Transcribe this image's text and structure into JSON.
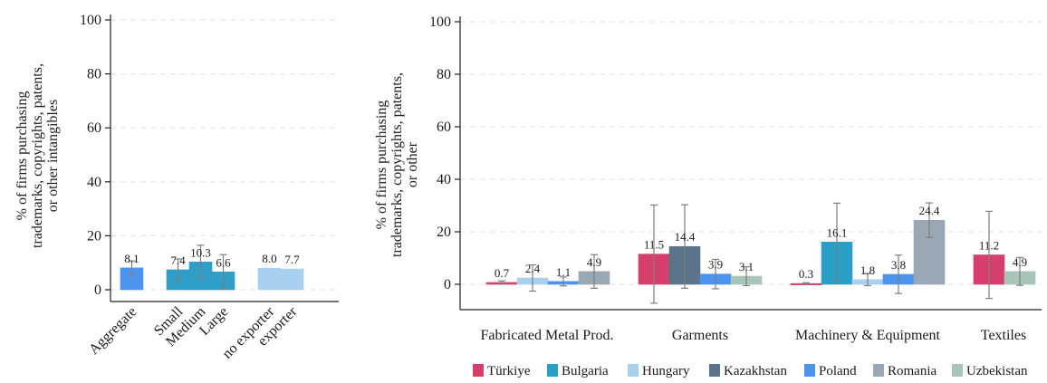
{
  "colors": {
    "grid": "#e6e6e6",
    "axis": "#222222",
    "errorbar": "#7f7f7f",
    "text": "#1a1a1a"
  },
  "chart_data": [
    {
      "type": "bar",
      "ylabel": "% of firms purchasing trademarks, copyrights, patents, or other intangibles",
      "ylim": [
        0,
        100
      ],
      "yticks": [
        0,
        20,
        40,
        60,
        80,
        100
      ],
      "grid": true,
      "groups": [
        {
          "bars": [
            {
              "category": "Aggregate",
              "value": 8.1,
              "label": "8.1",
              "ci": [
                5.5,
                10.7
              ],
              "color": "#4d94ef"
            }
          ]
        },
        {
          "bars": [
            {
              "category": "Small",
              "value": 7.4,
              "label": "7.4",
              "ci": [
                3.4,
                11.4
              ],
              "color": "#2f9ec8"
            },
            {
              "category": "Medium",
              "value": 10.3,
              "label": "10.3",
              "ci": [
                4.1,
                16.5
              ],
              "color": "#2f9ec8"
            },
            {
              "category": "Large",
              "value": 6.6,
              "label": "6.6",
              "ci": [
                0.2,
                13.0
              ],
              "color": "#2f9ec8"
            }
          ]
        },
        {
          "bars": [
            {
              "category": "no exporter",
              "value": 8.0,
              "label": "8.0",
              "ci": null,
              "color": "#a9d0ee"
            },
            {
              "category": "exporter",
              "value": 7.7,
              "label": "7.7",
              "ci": null,
              "color": "#a9d0ee"
            }
          ]
        }
      ]
    },
    {
      "type": "bar",
      "ylabel": "% of firms purchasing trademarks, copyrights, patents, or other",
      "ylim": [
        0,
        100
      ],
      "yticks": [
        0,
        20,
        40,
        60,
        80,
        100
      ],
      "grid": true,
      "legend_position": "bottom",
      "series": [
        {
          "name": "Türkiye",
          "color": "#d63e6c"
        },
        {
          "name": "Bulgaria",
          "color": "#2a9fc6"
        },
        {
          "name": "Hungary",
          "color": "#a9d0ee"
        },
        {
          "name": "Kazakhstan",
          "color": "#5b7489"
        },
        {
          "name": "Poland",
          "color": "#4d94ef"
        },
        {
          "name": "Romania",
          "color": "#9aa7b5"
        },
        {
          "name": "Uzbekistan",
          "color": "#a9c4b8"
        }
      ],
      "groups": [
        {
          "category": "Fabricated Metal Prod.",
          "bars": [
            {
              "series": "Türkiye",
              "value": 0.7,
              "label": "0.7",
              "ci": [
                0.1,
                1.3
              ]
            },
            {
              "series": "Hungary",
              "value": 2.4,
              "label": "2.4",
              "ci": [
                -2.6,
                7.4
              ]
            },
            {
              "series": "Poland",
              "value": 1.1,
              "label": "1.1",
              "ci": [
                -0.6,
                2.8
              ]
            },
            {
              "series": "Romania",
              "value": 4.9,
              "label": "4.9",
              "ci": [
                -1.5,
                11.3
              ]
            }
          ]
        },
        {
          "category": "Garments",
          "bars": [
            {
              "series": "Türkiye",
              "value": 11.5,
              "label": "11.5",
              "ci": [
                -7.2,
                30.2
              ]
            },
            {
              "series": "Kazakhstan",
              "value": 14.4,
              "label": "14.4",
              "ci": [
                -1.5,
                30.3
              ]
            },
            {
              "series": "Poland",
              "value": 3.9,
              "label": "3.9",
              "ci": [
                -1.7,
                9.5
              ]
            },
            {
              "series": "Uzbekistan",
              "value": 3.1,
              "label": "3.1",
              "ci": [
                -0.5,
                6.7
              ]
            }
          ]
        },
        {
          "category": "Machinery & Equipment",
          "bars": [
            {
              "series": "Türkiye",
              "value": 0.3,
              "label": "0.3",
              "ci": [
                0.0,
                0.6
              ]
            },
            {
              "series": "Bulgaria",
              "value": 16.1,
              "label": "16.1",
              "ci": [
                1.3,
                30.9
              ]
            },
            {
              "series": "Hungary",
              "value": 1.8,
              "label": "1.8",
              "ci": [
                -0.5,
                4.1
              ]
            },
            {
              "series": "Poland",
              "value": 3.8,
              "label": "3.8",
              "ci": [
                -3.5,
                11.1
              ]
            },
            {
              "series": "Romania",
              "value": 24.4,
              "label": "24.4",
              "ci": [
                17.8,
                31.0
              ]
            }
          ]
        },
        {
          "category": "Textiles",
          "bars": [
            {
              "series": "Türkiye",
              "value": 11.2,
              "label": "11.2",
              "ci": [
                -5.4,
                27.8
              ]
            },
            {
              "series": "Uzbekistan",
              "value": 4.9,
              "label": "4.9",
              "ci": [
                -0.4,
                10.2
              ]
            }
          ]
        }
      ]
    }
  ]
}
